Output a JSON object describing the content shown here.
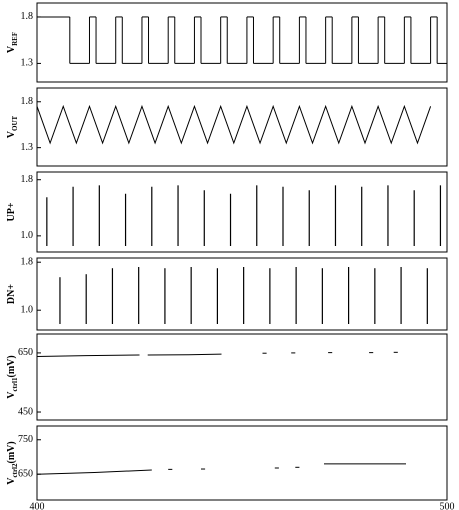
{
  "chart_data": [
    {
      "type": "step",
      "color": "#000000",
      "ylabel": [
        {
          "text": "V"
        },
        {
          "text": "REF",
          "sub": true
        }
      ],
      "xlim": [
        400,
        500
      ],
      "ylim": [
        1.1,
        1.95
      ],
      "yticks": [
        1.3,
        1.8
      ],
      "x": [
        400,
        408,
        412.8,
        414.4,
        419.2,
        420.8,
        425.6,
        427.2,
        432,
        433.6,
        438.4,
        440,
        444.8,
        446.4,
        451.2,
        452.8,
        457.6,
        459.2,
        464,
        465.6,
        470.4,
        472,
        476.8,
        478.4,
        483.2,
        484.8,
        489.6,
        491.2,
        496,
        497.6,
        500
      ],
      "values": [
        1.8,
        1.3,
        1.8,
        1.3,
        1.8,
        1.3,
        1.8,
        1.3,
        1.8,
        1.3,
        1.8,
        1.3,
        1.8,
        1.3,
        1.8,
        1.3,
        1.8,
        1.3,
        1.8,
        1.3,
        1.8,
        1.3,
        1.8,
        1.3,
        1.8,
        1.3,
        1.8,
        1.3,
        1.8,
        1.3,
        1.3
      ]
    },
    {
      "type": "line",
      "color": "#000000",
      "ylabel": [
        {
          "text": "V"
        },
        {
          "text": "OUT",
          "sub": true
        }
      ],
      "xlim": [
        400,
        500
      ],
      "ylim": [
        1.1,
        1.95
      ],
      "yticks": [
        1.3,
        1.8
      ],
      "x": [
        400,
        403.2,
        406.4,
        409.6,
        412.8,
        416,
        419.2,
        422.4,
        425.6,
        428.8,
        432,
        435.2,
        438.4,
        441.6,
        444.8,
        448,
        451.2,
        454.4,
        457.6,
        460.8,
        464,
        467.2,
        470.4,
        473.6,
        476.8,
        480,
        483.2,
        486.4,
        489.6,
        492.8,
        496
      ],
      "values": [
        1.75,
        1.35,
        1.75,
        1.35,
        1.75,
        1.35,
        1.75,
        1.35,
        1.75,
        1.35,
        1.75,
        1.35,
        1.75,
        1.35,
        1.75,
        1.35,
        1.75,
        1.35,
        1.75,
        1.35,
        1.75,
        1.35,
        1.75,
        1.35,
        1.75,
        1.35,
        1.75,
        1.35,
        1.75,
        1.35,
        1.75
      ]
    },
    {
      "type": "stem",
      "color": "#000000",
      "ylabel": [
        {
          "text": "UP+"
        }
      ],
      "xlim": [
        400,
        500
      ],
      "ylim": [
        0.77,
        1.91
      ],
      "yticks": [
        {
          "value": 1,
          "label": "1.0"
        },
        1.8
      ],
      "x": [
        402.4,
        408.8,
        415.2,
        421.6,
        428,
        434.4,
        440.8,
        447.2,
        453.6,
        460,
        466.4,
        472.8,
        479.2,
        485.6,
        492,
        498.4
      ],
      "values": [
        1.55,
        1.7,
        1.72,
        1.6,
        1.7,
        1.72,
        1.65,
        1.6,
        1.72,
        1.7,
        1.65,
        1.72,
        1.7,
        1.72,
        1.65,
        1.72
      ]
    },
    {
      "type": "stem",
      "color": "#000000",
      "ylabel": [
        {
          "text": "DN+"
        }
      ],
      "xlim": [
        400,
        500
      ],
      "ylim": [
        0.67,
        1.87
      ],
      "yticks": [
        {
          "value": 1,
          "label": "1.0"
        },
        1.8
      ],
      "x": [
        405.6,
        412,
        418.4,
        424.8,
        431.2,
        437.6,
        444,
        450.4,
        456.8,
        463.2,
        469.6,
        476,
        482.4,
        488.8,
        495.2
      ],
      "values": [
        1.55,
        1.6,
        1.7,
        1.72,
        1.7,
        1.72,
        1.7,
        1.72,
        1.7,
        1.72,
        1.7,
        1.72,
        1.7,
        1.72,
        1.7
      ]
    },
    {
      "type": "line",
      "color": "#000000",
      "ylabel": [
        {
          "text": "V"
        },
        {
          "text": "ctrl1",
          "sub": true
        },
        {
          "text": "(mV)"
        }
      ],
      "xlim": [
        400,
        500
      ],
      "ylim": [
        423,
        714
      ],
      "yticks": [
        450,
        650
      ],
      "x": [
        400,
        412,
        425,
        426,
        427,
        437,
        445,
        446,
        455,
        456,
        457,
        462,
        463,
        464,
        471,
        472,
        473,
        481,
        482,
        483,
        487,
        488
      ],
      "values": [
        638,
        641,
        643,
        null,
        643,
        644,
        646,
        null,
        649,
        649,
        null,
        650,
        650,
        null,
        651,
        651,
        null,
        651,
        651,
        null,
        652,
        652
      ]
    },
    {
      "type": "line",
      "color": "#000000",
      "ylabel": [
        {
          "text": "V"
        },
        {
          "text": "ctrl2",
          "sub": true
        },
        {
          "text": "(mV)"
        }
      ],
      "xlim": [
        400,
        500
      ],
      "ylim": [
        575,
        790
      ],
      "yticks": [
        650,
        750
      ],
      "xticks": [
        400,
        500
      ],
      "x": [
        400,
        414,
        428,
        429,
        432,
        433,
        434,
        440,
        441,
        442,
        458,
        459,
        460,
        463,
        464,
        465,
        470,
        490
      ],
      "values": [
        650,
        655,
        662,
        null,
        664,
        664,
        null,
        665,
        665,
        null,
        668,
        668,
        null,
        670,
        670,
        null,
        680,
        680
      ]
    }
  ]
}
